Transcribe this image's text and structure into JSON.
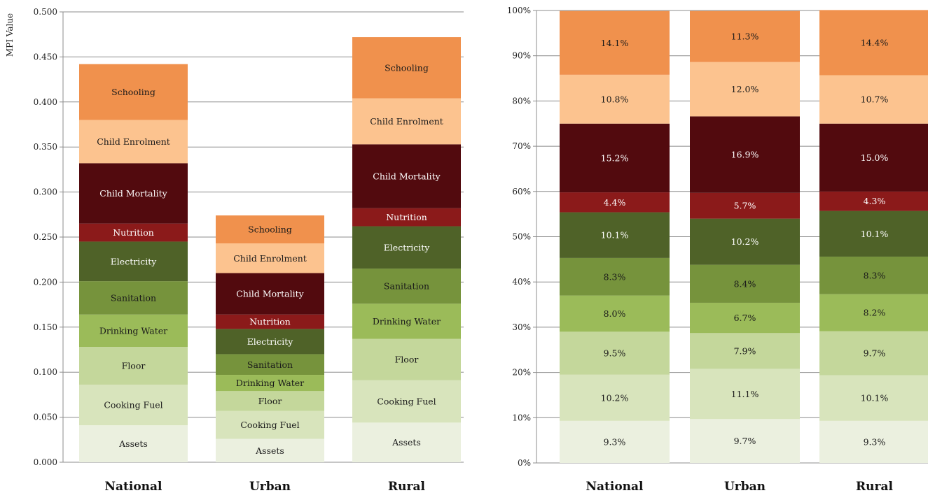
{
  "chart_data": [
    {
      "type": "bar",
      "stacked": true,
      "title": "",
      "xlabel": "",
      "ylabel": "MPI Value",
      "ylim": [
        0,
        0.5
      ],
      "yticks": [
        "0.000",
        "0.050",
        "0.100",
        "0.150",
        "0.200",
        "0.250",
        "0.300",
        "0.350",
        "0.400",
        "0.450",
        "0.500"
      ],
      "grid": true,
      "categories": [
        "National",
        "Urban",
        "Rural"
      ],
      "series": [
        {
          "name": "Assets",
          "color": "#EBF0DF",
          "values": [
            0.041,
            0.026,
            0.044
          ]
        },
        {
          "name": "Cooking Fuel",
          "color": "#D8E4BC",
          "values": [
            0.045,
            0.031,
            0.047
          ]
        },
        {
          "name": "Floor",
          "color": "#C4D79B",
          "values": [
            0.042,
            0.022,
            0.046
          ]
        },
        {
          "name": "Drinking Water",
          "color": "#9BBB59",
          "values": [
            0.036,
            0.018,
            0.039
          ]
        },
        {
          "name": "Sanitation",
          "color": "#76933C",
          "values": [
            0.037,
            0.023,
            0.039
          ]
        },
        {
          "name": "Electricity",
          "color": "#4F6228",
          "values": [
            0.044,
            0.028,
            0.047
          ]
        },
        {
          "name": "Nutrition",
          "color": "#8B1A1A",
          "values": [
            0.02,
            0.016,
            0.02
          ]
        },
        {
          "name": "Child Mortality",
          "color": "#520A0E",
          "values": [
            0.067,
            0.046,
            0.071
          ]
        },
        {
          "name": "Child Enrolment",
          "color": "#FCC38F",
          "values": [
            0.048,
            0.033,
            0.051
          ]
        },
        {
          "name": "Schooling",
          "color": "#F0914D",
          "values": [
            0.062,
            0.031,
            0.068
          ]
        }
      ]
    },
    {
      "type": "bar",
      "stacked": true,
      "title": "",
      "xlabel": "",
      "ylabel": "",
      "ylim": [
        0,
        100
      ],
      "yticks": [
        "0%",
        "10%",
        "20%",
        "30%",
        "40%",
        "50%",
        "60%",
        "70%",
        "80%",
        "90%",
        "100%"
      ],
      "grid": true,
      "categories": [
        "National",
        "Urban",
        "Rural"
      ],
      "series": [
        {
          "color": "#EBF0DF",
          "values": [
            9.3,
            9.7,
            9.3
          ],
          "labels": [
            "9.3%",
            "9.7%",
            "9.3%"
          ]
        },
        {
          "color": "#D8E4BC",
          "values": [
            10.2,
            11.1,
            10.1
          ],
          "labels": [
            "10.2%",
            "11.1%",
            "10.1%"
          ]
        },
        {
          "color": "#C4D79B",
          "values": [
            9.5,
            7.9,
            9.7
          ],
          "labels": [
            "9.5%",
            "7.9%",
            "9.7%"
          ]
        },
        {
          "color": "#9BBB59",
          "values": [
            8.0,
            6.7,
            8.2
          ],
          "labels": [
            "8.0%",
            "6.7%",
            "8.2%"
          ]
        },
        {
          "color": "#76933C",
          "values": [
            8.3,
            8.4,
            8.3
          ],
          "labels": [
            "8.3%",
            "8.4%",
            "8.3%"
          ]
        },
        {
          "color": "#4F6228",
          "values": [
            10.1,
            10.2,
            10.1
          ],
          "labels": [
            "10.1%",
            "10.2%",
            "10.1%"
          ]
        },
        {
          "color": "#8B1A1A",
          "values": [
            4.4,
            5.7,
            4.3
          ],
          "labels": [
            "4.4%",
            "5.7%",
            "4.3%"
          ]
        },
        {
          "color": "#520A0E",
          "values": [
            15.2,
            16.9,
            15.0
          ],
          "labels": [
            "15.2%",
            "16.9%",
            "15.0%"
          ]
        },
        {
          "color": "#FCC38F",
          "values": [
            10.8,
            12.0,
            10.7
          ],
          "labels": [
            "10.8%",
            "12.0%",
            "10.7%"
          ]
        },
        {
          "color": "#F0914D",
          "values": [
            14.1,
            11.3,
            14.4
          ],
          "labels": [
            "14.1%",
            "11.3%",
            "14.4%"
          ]
        }
      ]
    }
  ]
}
